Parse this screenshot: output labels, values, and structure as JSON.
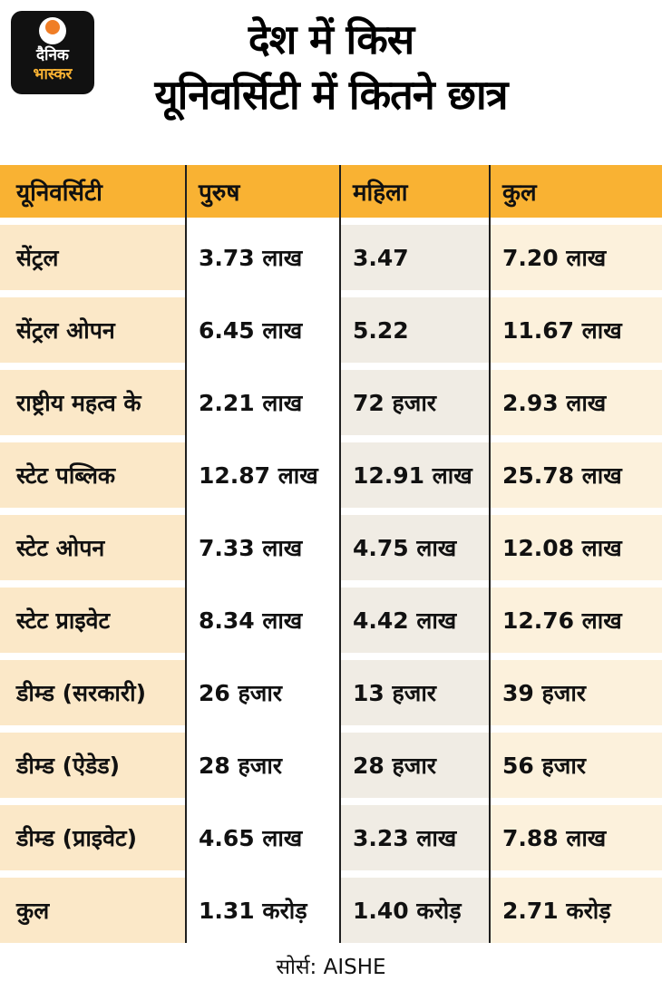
{
  "logo": {
    "line1": "दैनिक",
    "line2": "भास्कर"
  },
  "title": {
    "line1": "देश में किस",
    "line2": "यूनिवर्सिटी में कितने छात्र"
  },
  "chart_data": {
    "type": "table",
    "title": "देश में किस यूनिवर्सिटी में कितने छात्र",
    "columns": [
      "यूनिवर्सिटी",
      "पुरुष",
      "महिला",
      "कुल"
    ],
    "rows": [
      [
        "सेंट्रल",
        "3.73 लाख",
        "3.47",
        "7.20 लाख"
      ],
      [
        "सेंट्रल ओपन",
        "6.45 लाख",
        "5.22",
        "11.67 लाख"
      ],
      [
        "राष्ट्रीय महत्व के",
        "2.21 लाख",
        "72 हजार",
        "2.93 लाख"
      ],
      [
        "स्टेट पब्लिक",
        "12.87 लाख",
        "12.91 लाख",
        "25.78 लाख"
      ],
      [
        "स्टेट ओपन",
        "7.33 लाख",
        "4.75 लाख",
        "12.08 लाख"
      ],
      [
        "स्टेट प्राइवेट",
        "8.34 लाख",
        "4.42 लाख",
        "12.76 लाख"
      ],
      [
        "डीम्ड (सरकारी)",
        "26 हजार",
        "13 हजार",
        "39 हजार"
      ],
      [
        "डीम्ड (ऐडेड)",
        "28 हजार",
        "28 हजार",
        "56 हजार"
      ],
      [
        "डीम्ड (प्राइवेट)",
        "4.65 लाख",
        "3.23 लाख",
        "7.88 लाख"
      ],
      [
        "कुल",
        "1.31 करोड़",
        "1.40 करोड़",
        "2.71 करोड़"
      ]
    ],
    "source": "AISHE"
  },
  "footer": {
    "source_label": "सोर्स: AISHE"
  },
  "colors": {
    "header_bg": "#F9B233",
    "col_university_bg": "#FBE8C8",
    "col_male_bg": "#FFFFFF",
    "col_female_bg": "#F0ECE4",
    "col_total_bg": "#FCF1DC",
    "divider": "#1F1F1F",
    "logo_bg": "#111111",
    "logo_sun_dot": "#F07E26",
    "logo_accent": "#F9B233"
  }
}
